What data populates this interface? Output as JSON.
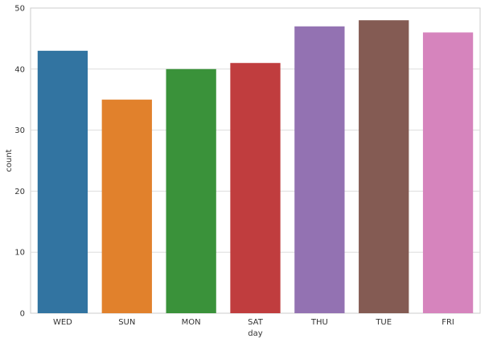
{
  "chart_data": {
    "type": "bar",
    "title": "",
    "xlabel": "day",
    "ylabel": "count",
    "categories": [
      "WED",
      "SUN",
      "MON",
      "SAT",
      "THU",
      "TUE",
      "FRI"
    ],
    "values": [
      43,
      35,
      40,
      41,
      47,
      48,
      46
    ],
    "colors": [
      "#3274a1",
      "#e1812c",
      "#3a923a",
      "#c03d3e",
      "#9372b2",
      "#845b53",
      "#d684bd"
    ],
    "ylim": [
      0,
      50
    ],
    "yticks": [
      0,
      10,
      20,
      30,
      40,
      50
    ],
    "grid": "horizontal",
    "background": "#ffffff",
    "grid_color": "#dddddd",
    "spine_color": "#cccccc"
  }
}
